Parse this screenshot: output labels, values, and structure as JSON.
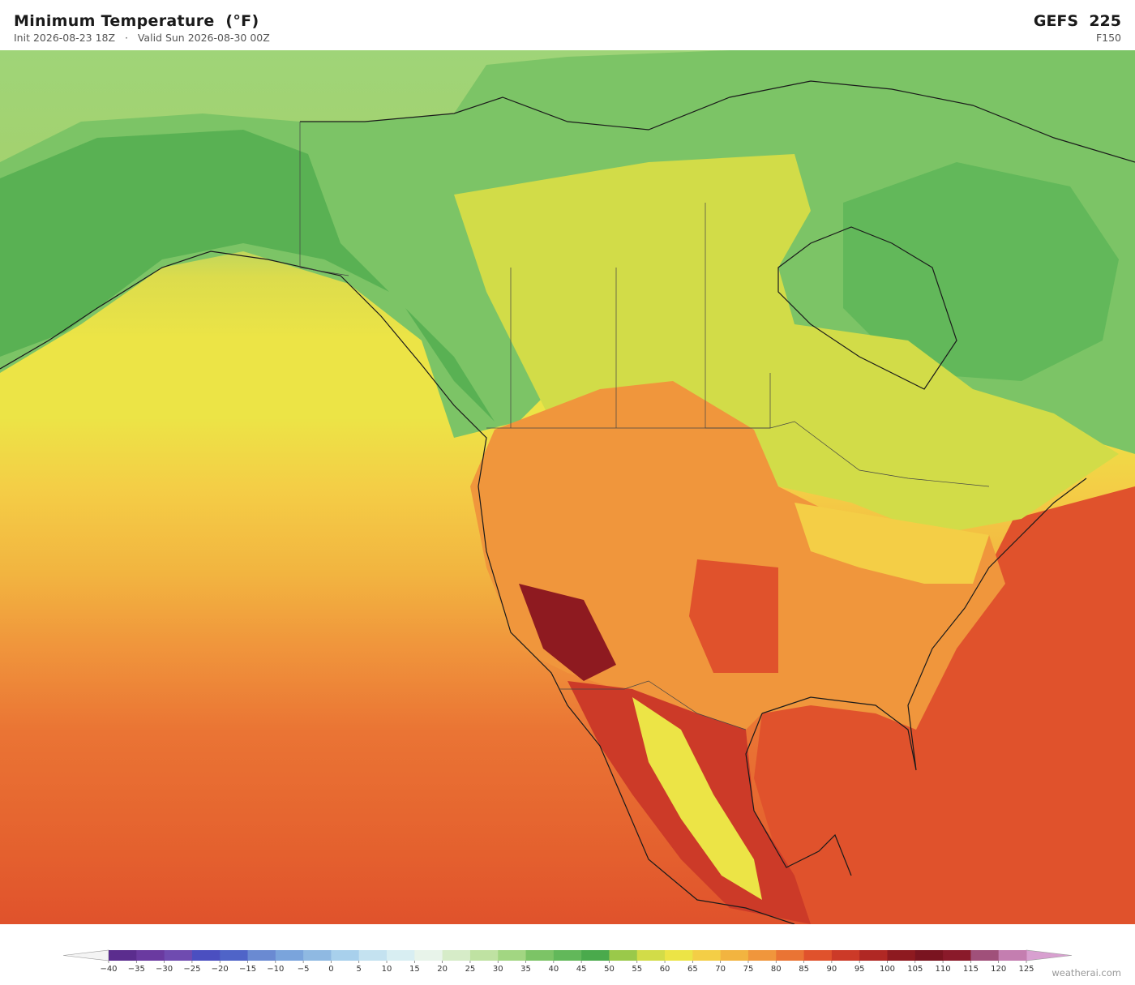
{
  "header": {
    "title": "Minimum Temperature  (°F)",
    "subtitle": "Init 2026-08-23 18Z   ·   Valid Sun 2026-08-30 00Z",
    "model": "GEFS  225",
    "forecast_hour": "F150"
  },
  "colorbar": {
    "ticks": [
      {
        "value": -40,
        "label": "−40"
      },
      {
        "value": -35,
        "label": "−35"
      },
      {
        "value": -30,
        "label": "−30"
      },
      {
        "value": -25,
        "label": "−25"
      },
      {
        "value": -20,
        "label": "−20"
      },
      {
        "value": -15,
        "label": "−15"
      },
      {
        "value": -10,
        "label": "−10"
      },
      {
        "value": -5,
        "label": "−5"
      },
      0,
      5,
      10,
      15,
      20,
      25,
      30,
      35,
      40,
      45,
      50,
      55,
      60,
      65,
      70,
      75,
      80,
      85,
      90,
      95,
      100,
      105,
      110,
      115,
      120,
      125
    ],
    "colors": [
      "#5b2d8e",
      "#6a3aa0",
      "#6f4bb0",
      "#4b4fc0",
      "#4f64c8",
      "#6a8ad2",
      "#7aa4dc",
      "#8fb9e2",
      "#a8d0ec",
      "#c4e2f0",
      "#d8eef2",
      "#e8f4ea",
      "#d6ecc8",
      "#bfe2a2",
      "#a2d682",
      "#7cc466",
      "#62b85a",
      "#4aaa4c",
      "#9ac94a",
      "#d2dc48",
      "#ece446",
      "#f4ce46",
      "#f2b440",
      "#f0963c",
      "#ea7434",
      "#e0522c",
      "#cc3a28",
      "#b02824",
      "#8e1a20",
      "#7a1420",
      "#8a1a2a",
      "#a0507a",
      "#c47eb0"
    ],
    "under_color": "#f4f4f4",
    "over_color": "#d8a0d0"
  },
  "credit": "weatherai.com"
}
